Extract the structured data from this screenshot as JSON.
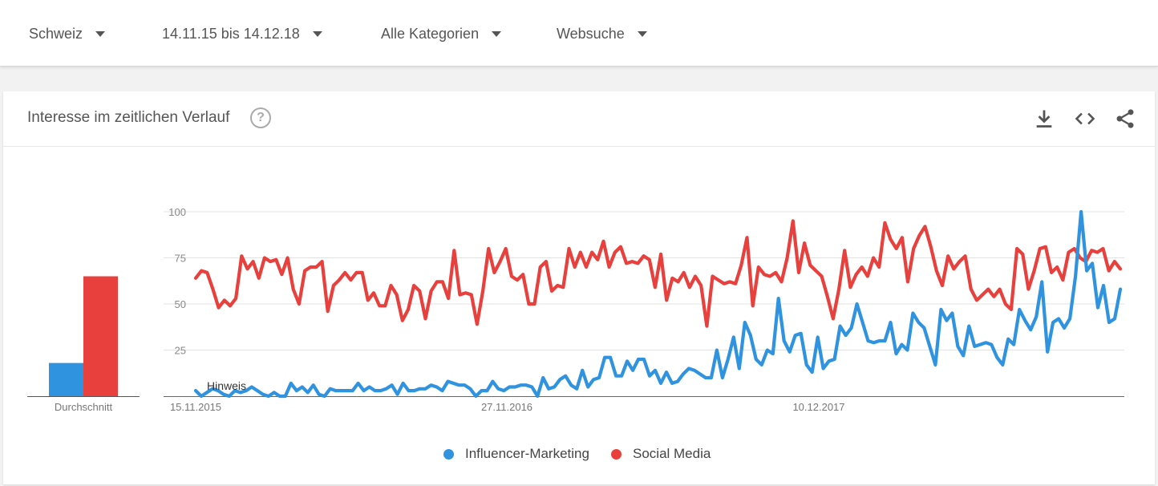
{
  "filters": {
    "region": "Schweiz",
    "date_range": "14.11.15 bis 14.12.18",
    "category": "Alle Kategorien",
    "search_type": "Websuche"
  },
  "card": {
    "title": "Interesse im zeitlichen Verlauf",
    "help_symbol": "?",
    "download_icon": "download-icon",
    "embed_icon": "embed-code-icon",
    "share_icon": "share-icon"
  },
  "colors": {
    "influencer": "#2f93e0",
    "social": "#e8403d"
  },
  "chart_data": [
    {
      "type": "bar",
      "categories": [
        "Durchschnitt"
      ],
      "series": [
        {
          "name": "Influencer-Marketing",
          "values": [
            18
          ]
        },
        {
          "name": "Social Media",
          "values": [
            65
          ]
        }
      ],
      "ylim": [
        0,
        100
      ],
      "xlabel": "",
      "ylabel": ""
    },
    {
      "type": "line",
      "x_tick_labels": [
        "15.11.2015",
        "27.11.2016",
        "10.12.2017"
      ],
      "y_ticks": [
        25,
        50,
        75,
        100
      ],
      "ylim": [
        0,
        100
      ],
      "grid": true,
      "annotation": "Hinweis",
      "legend_position": "bottom",
      "series": [
        {
          "name": "Influencer-Marketing",
          "values": [
            3,
            0,
            2,
            4,
            3,
            1,
            0,
            3,
            2,
            3,
            5,
            3,
            1,
            0,
            2,
            0,
            0,
            7,
            3,
            5,
            2,
            6,
            1,
            0,
            4,
            3,
            3,
            3,
            3,
            7,
            3,
            5,
            3,
            3,
            4,
            6,
            1,
            7,
            3,
            3,
            4,
            4,
            6,
            5,
            3,
            8,
            7,
            6,
            6,
            4,
            0,
            3,
            3,
            8,
            4,
            3,
            5,
            5,
            6,
            6,
            5,
            0,
            10,
            4,
            5,
            9,
            11,
            6,
            4,
            14,
            5,
            9,
            10,
            21,
            21,
            11,
            11,
            19,
            14,
            20,
            20,
            11,
            14,
            7,
            13,
            7,
            8,
            12,
            15,
            14,
            12,
            10,
            10,
            25,
            10,
            20,
            32,
            15,
            40,
            33,
            20,
            17,
            25,
            23,
            53,
            30,
            24,
            33,
            34,
            17,
            13,
            32,
            15,
            19,
            20,
            38,
            33,
            37,
            50,
            40,
            30,
            29,
            30,
            30,
            40,
            23,
            28,
            25,
            45,
            40,
            37,
            27,
            17,
            47,
            41,
            45,
            27,
            22,
            38,
            27,
            28,
            29,
            28,
            21,
            17,
            31,
            28,
            47,
            41,
            36,
            43,
            62,
            24,
            40,
            42,
            37,
            42,
            65,
            100,
            68,
            72,
            48,
            60,
            40,
            42,
            58
          ]
        },
        {
          "name": "Social Media",
          "values": [
            64,
            68,
            67,
            58,
            48,
            52,
            49,
            53,
            76,
            69,
            73,
            64,
            75,
            73,
            74,
            66,
            75,
            58,
            50,
            68,
            70,
            70,
            73,
            46,
            60,
            63,
            67,
            63,
            67,
            67,
            52,
            56,
            49,
            49,
            60,
            55,
            41,
            47,
            60,
            57,
            42,
            57,
            62,
            62,
            53,
            79,
            55,
            56,
            55,
            39,
            57,
            80,
            67,
            73,
            80,
            65,
            63,
            66,
            50,
            50,
            70,
            73,
            57,
            60,
            59,
            80,
            70,
            78,
            70,
            78,
            74,
            84,
            70,
            78,
            81,
            72,
            73,
            72,
            76,
            74,
            59,
            77,
            52,
            64,
            62,
            67,
            59,
            65,
            60,
            38,
            65,
            63,
            61,
            62,
            61,
            71,
            86,
            49,
            70,
            66,
            65,
            67,
            62,
            75,
            95,
            67,
            83,
            71,
            68,
            65,
            54,
            42,
            58,
            79,
            59,
            66,
            70,
            65,
            75,
            70,
            94,
            85,
            80,
            86,
            62,
            80,
            87,
            92,
            81,
            68,
            60,
            76,
            69,
            73,
            76,
            58,
            52,
            55,
            58,
            54,
            58,
            50,
            47,
            80,
            77,
            58,
            68,
            80,
            81,
            67,
            70,
            63,
            78,
            80,
            75,
            73,
            79,
            78,
            80,
            68,
            73,
            69
          ]
        }
      ]
    }
  ],
  "legend": {
    "influencer_label": "Influencer-Marketing",
    "social_label": "Social Media"
  }
}
